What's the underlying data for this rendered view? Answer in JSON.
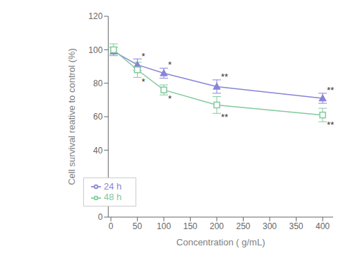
{
  "chart_data": {
    "type": "line",
    "x": [
      5,
      50,
      100,
      200,
      400
    ],
    "series": [
      {
        "name": "24 h",
        "color": "#8884d8",
        "marker": "triangle",
        "values": [
          99,
          91,
          86,
          78,
          71
        ],
        "errors": [
          2.5,
          3.5,
          3,
          4,
          3
        ]
      },
      {
        "name": "48 h",
        "color": "#82ca9d",
        "marker": "square_open",
        "values": [
          100,
          88,
          76,
          67,
          61
        ],
        "errors": [
          3.5,
          4.5,
          3,
          5,
          4
        ]
      }
    ],
    "annotations": [
      {
        "x": 50,
        "y": 96,
        "text": "*"
      },
      {
        "x": 100,
        "y": 91,
        "text": "*"
      },
      {
        "x": 200,
        "y": 84,
        "text": "**"
      },
      {
        "x": 400,
        "y": 76,
        "text": "**"
      },
      {
        "x": 50,
        "y": 81,
        "text": "*"
      },
      {
        "x": 100,
        "y": 71,
        "text": "*"
      },
      {
        "x": 200,
        "y": 60,
        "text": "**"
      },
      {
        "x": 400,
        "y": 55,
        "text": "**"
      }
    ],
    "xlabel": "Concentration ( g/mL)",
    "ylabel": "Cell survival reative to control (%)",
    "xlim": [
      -5,
      420
    ],
    "xticks": [
      0,
      50,
      100,
      150,
      200,
      250,
      300,
      350,
      400
    ],
    "ylim": [
      0,
      120
    ],
    "yticks": [
      0,
      20,
      40,
      60,
      80,
      100,
      120
    ],
    "grid": false,
    "legend": "lower left"
  }
}
